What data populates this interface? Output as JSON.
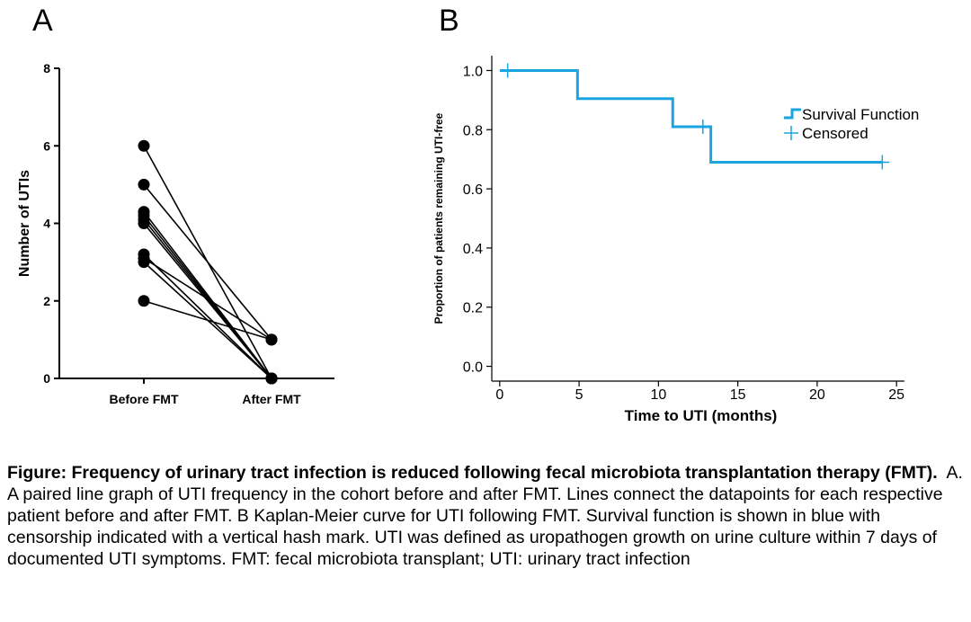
{
  "panel_a_label": "A",
  "panel_b_label": "B",
  "caption": {
    "title": "Figure: Frequency of urinary tract infection is reduced following fecal microbiota transplantation therapy (FMT).",
    "body": "A. A paired line graph of UTI frequency in the cohort before and after FMT.  Lines connect the datapoints for each respective patient before and after FMT.  B Kaplan-Meier curve for UTI following FMT.  Survival function is shown in blue with censorship indicated with a vertical hash mark.  UTI was defined as uropathogen growth on urine culture within 7 days of documented UTI symptoms. FMT: fecal microbiota transplant; UTI: urinary tract infection"
  },
  "colors": {
    "survival": "#1ba5e0",
    "points": "#000000"
  },
  "chart_data": [
    {
      "type": "line",
      "chart_subtype": "paired-dot",
      "categories": [
        "Before FMT",
        "After FMT"
      ],
      "ylabel": "Number of UTIs",
      "xlabel": "",
      "ylim": [
        0,
        8
      ],
      "yticks": [
        0,
        2,
        4,
        6,
        8
      ],
      "grid": false,
      "pairs": [
        [
          6,
          0
        ],
        [
          5,
          1
        ],
        [
          4.3,
          0
        ],
        [
          4.2,
          0
        ],
        [
          4.1,
          0
        ],
        [
          4,
          0
        ],
        [
          3.2,
          0
        ],
        [
          3.1,
          1
        ],
        [
          3,
          0
        ],
        [
          2,
          1
        ]
      ]
    },
    {
      "type": "line",
      "chart_subtype": "kaplan-meier",
      "xlabel": "Time to UTI (months)",
      "ylabel": "Proportion of patients remaining UTI-free",
      "xlim": [
        -0.5,
        25.5
      ],
      "ylim": [
        -0.05,
        1.05
      ],
      "xticks": [
        0,
        5,
        10,
        15,
        20,
        25
      ],
      "yticks": [
        0.0,
        0.2,
        0.4,
        0.6,
        0.8,
        1.0
      ],
      "ytick_labels": [
        "0.0",
        "0.2",
        "0.4",
        "0.6",
        "0.8",
        "1.0"
      ],
      "grid": false,
      "legend_position": "right",
      "legend": [
        "Survival Function",
        "Censored"
      ],
      "steps": [
        {
          "x": 0,
          "y": 1.0
        },
        {
          "x": 4.9,
          "y": 0.905
        },
        {
          "x": 10.9,
          "y": 0.81
        },
        {
          "x": 13.3,
          "y": 0.69
        },
        {
          "x": 24.1,
          "y": 0.69
        }
      ],
      "censored": [
        {
          "x": 0.5,
          "y": 1.0
        },
        {
          "x": 12.8,
          "y": 0.81
        },
        {
          "x": 24.1,
          "y": 0.69
        }
      ]
    }
  ]
}
